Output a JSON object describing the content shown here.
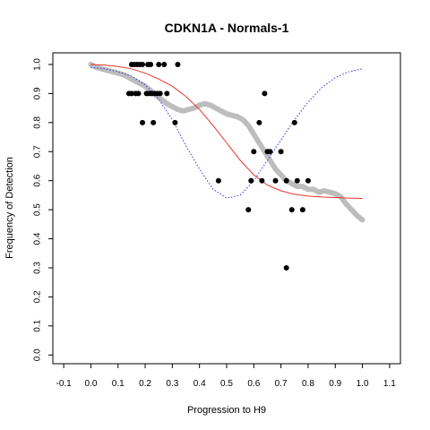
{
  "chart_data": {
    "type": "scatter",
    "title": "CDKN1A - Normals-1",
    "xlabel": "Progression to H9",
    "ylabel": "Frequency of Detection",
    "xlim": [
      -0.14,
      1.14
    ],
    "ylim": [
      -0.03,
      1.04
    ],
    "x_ticks": [
      "-0.1",
      "0.0",
      "0.1",
      "0.2",
      "0.3",
      "0.4",
      "0.5",
      "0.6",
      "0.7",
      "0.8",
      "0.9",
      "1.0",
      "1.1"
    ],
    "y_ticks": [
      "0.0",
      "0.1",
      "0.2",
      "0.3",
      "0.4",
      "0.5",
      "0.6",
      "0.7",
      "0.8",
      "0.9",
      "1.0"
    ],
    "grid": false,
    "legend": "none",
    "colors": {
      "gray_points": "#bdbdbd",
      "black_points": "#000000",
      "red_curve": "#e8352a",
      "blue_curve": "#3333ee"
    },
    "series": [
      {
        "kind": "gray-points",
        "x": [
          0.0,
          0.02,
          0.04,
          0.06,
          0.08,
          0.1,
          0.12,
          0.14,
          0.16,
          0.18,
          0.2,
          0.22,
          0.24,
          0.26,
          0.28,
          0.3,
          0.32,
          0.34,
          0.36,
          0.38,
          0.4,
          0.42,
          0.44,
          0.46,
          0.48,
          0.5,
          0.52,
          0.54,
          0.56,
          0.58,
          0.6,
          0.62,
          0.64,
          0.66,
          0.68,
          0.7,
          0.72,
          0.74,
          0.76,
          0.78,
          0.8,
          0.82,
          0.84,
          0.86,
          0.88,
          0.9,
          0.92,
          0.94,
          0.96,
          0.98,
          1.0
        ],
        "y": [
          1.0,
          0.99,
          0.985,
          0.98,
          0.975,
          0.97,
          0.965,
          0.955,
          0.945,
          0.935,
          0.925,
          0.91,
          0.895,
          0.88,
          0.865,
          0.855,
          0.845,
          0.84,
          0.845,
          0.85,
          0.86,
          0.865,
          0.86,
          0.85,
          0.84,
          0.83,
          0.825,
          0.82,
          0.81,
          0.79,
          0.76,
          0.73,
          0.7,
          0.67,
          0.64,
          0.62,
          0.6,
          0.59,
          0.58,
          0.58,
          0.57,
          0.57,
          0.56,
          0.565,
          0.56,
          0.555,
          0.545,
          0.52,
          0.5,
          0.48,
          0.465
        ]
      },
      {
        "kind": "black-points",
        "x": [
          0.15,
          0.16,
          0.17,
          0.18,
          0.19,
          0.21,
          0.22,
          0.25,
          0.27,
          0.32,
          0.14,
          0.165,
          0.175,
          0.205,
          0.215,
          0.225,
          0.235,
          0.245,
          0.255,
          0.15,
          0.19,
          0.23,
          0.28,
          0.31,
          0.47,
          0.58,
          0.59,
          0.6,
          0.62,
          0.63,
          0.64,
          0.65,
          0.66,
          0.68,
          0.7,
          0.72,
          0.74,
          0.75,
          0.76,
          0.78,
          0.8,
          0.72
        ],
        "y": [
          1.0,
          1.0,
          1.0,
          1.0,
          1.0,
          1.0,
          1.0,
          1.0,
          1.0,
          1.0,
          0.9,
          0.9,
          0.9,
          0.9,
          0.9,
          0.9,
          0.9,
          0.9,
          0.9,
          0.9,
          0.8,
          0.8,
          0.9,
          0.8,
          0.6,
          0.5,
          0.6,
          0.7,
          0.8,
          0.6,
          0.9,
          0.7,
          0.7,
          0.6,
          0.7,
          0.6,
          0.5,
          0.8,
          0.6,
          0.5,
          0.6,
          0.3
        ]
      },
      {
        "kind": "red-line",
        "x": [
          0.0,
          0.05,
          0.1,
          0.15,
          0.2,
          0.25,
          0.3,
          0.35,
          0.4,
          0.45,
          0.5,
          0.55,
          0.6,
          0.65,
          0.7,
          0.75,
          0.8,
          0.85,
          0.9,
          0.95,
          1.0
        ],
        "y": [
          1.0,
          0.998,
          0.993,
          0.985,
          0.97,
          0.95,
          0.925,
          0.89,
          0.845,
          0.79,
          0.73,
          0.67,
          0.62,
          0.585,
          0.565,
          0.553,
          0.547,
          0.544,
          0.542,
          0.54,
          0.539
        ]
      },
      {
        "kind": "blue-dotted-line",
        "x": [
          0.0,
          0.05,
          0.1,
          0.15,
          0.2,
          0.25,
          0.3,
          0.35,
          0.4,
          0.45,
          0.5,
          0.55,
          0.6,
          0.65,
          0.7,
          0.75,
          0.8,
          0.85,
          0.9,
          0.95,
          1.0
        ],
        "y": [
          0.99,
          0.985,
          0.975,
          0.96,
          0.93,
          0.88,
          0.81,
          0.72,
          0.64,
          0.57,
          0.54,
          0.55,
          0.6,
          0.67,
          0.74,
          0.81,
          0.87,
          0.92,
          0.955,
          0.975,
          0.985
        ]
      }
    ]
  }
}
